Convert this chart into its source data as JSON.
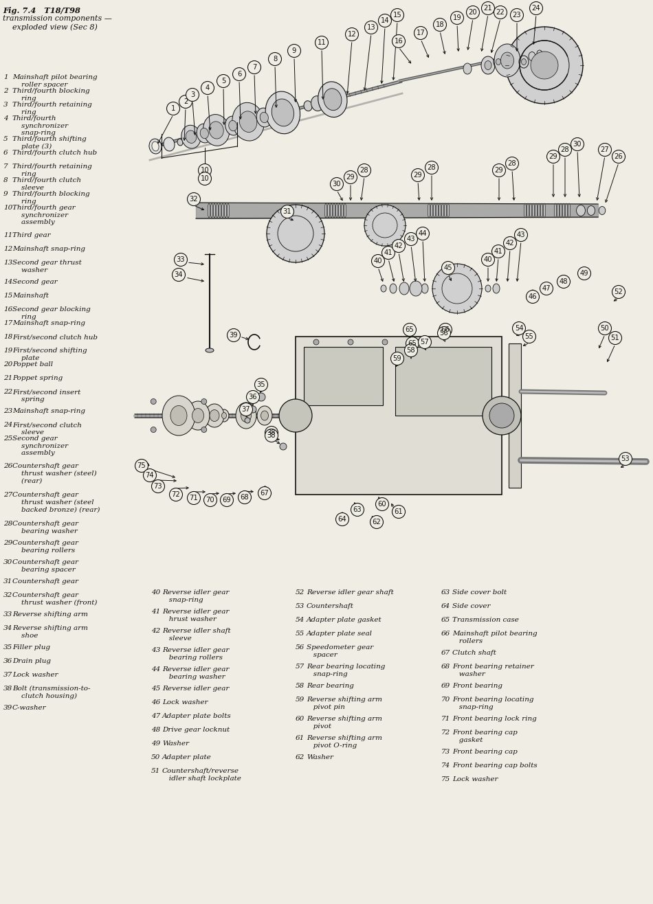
{
  "bg_color": "#f0ede4",
  "text_color": "#111111",
  "title_line1": "Fig. 7.4   T18/T98",
  "title_line2": "transmission components —",
  "title_line3": "    exploded view (Sec 8)",
  "left_col_items": [
    [
      1,
      "Mainshaft pilot bearing\n    roller spacer"
    ],
    [
      2,
      "Third/fourth blocking\n    ring"
    ],
    [
      3,
      "Third/fourth retaining\n    ring"
    ],
    [
      4,
      "Third/fourth\n    synchronizer\n    snap-ring"
    ],
    [
      5,
      "Third/fourth shifting\n    plate (3)"
    ],
    [
      6,
      "Third/fourth clutch hub"
    ],
    [
      7,
      "Third/fourth retaining\n    ring"
    ],
    [
      8,
      "Third/fourth clutch\n    sleeve"
    ],
    [
      9,
      "Third/fourth blocking\n    ring"
    ],
    [
      10,
      "Third/fourth gear\n    synchronizer\n    assembly"
    ],
    [
      11,
      "Third gear"
    ],
    [
      12,
      "Mainshaft snap-ring"
    ],
    [
      13,
      "Second gear thrust\n    washer"
    ],
    [
      14,
      "Second gear"
    ],
    [
      15,
      "Mainshaft"
    ],
    [
      16,
      "Second gear blocking\n    ring"
    ],
    [
      17,
      "Mainshaft snap-ring"
    ],
    [
      18,
      "First/second clutch hub"
    ],
    [
      19,
      "First/second shifting\n    plate"
    ],
    [
      20,
      "Poppet ball"
    ],
    [
      21,
      "Poppet spring"
    ],
    [
      22,
      "First/second insert\n    spring"
    ],
    [
      23,
      "Mainshaft snap-ring"
    ],
    [
      24,
      "First/second clutch\n    sleeve"
    ],
    [
      25,
      "Second gear\n    synchronizer\n    assembly"
    ],
    [
      26,
      "Countershaft gear\n    thrust washer (steel)\n    (rear)"
    ],
    [
      27,
      "Countershaft gear\n    thrust washer (steel\n    backed bronze) (rear)"
    ],
    [
      28,
      "Countershaft gear\n    bearing washer"
    ],
    [
      29,
      "Countershaft gear\n    bearing rollers"
    ],
    [
      30,
      "Countershaft gear\n    bearing spacer"
    ],
    [
      31,
      "Countershaft gear"
    ],
    [
      32,
      "Countershaft gear\n    thrust washer (front)"
    ],
    [
      33,
      "Reverse shifting arm"
    ],
    [
      34,
      "Reverse shifting arm\n    shoe"
    ],
    [
      35,
      "Filler plug"
    ],
    [
      36,
      "Drain plug"
    ],
    [
      37,
      "Lock washer"
    ],
    [
      38,
      "Bolt (transmission-to-\n    clutch housing)"
    ],
    [
      39,
      "C-washer"
    ]
  ],
  "bot_col1": [
    [
      40,
      "Reverse idler gear\n   snap-ring"
    ],
    [
      41,
      "Reverse idler gear\n   hrust washer"
    ],
    [
      42,
      "Reverse idler shaft\n   sleeve"
    ],
    [
      43,
      "Reverse idler gear\n   bearing rollers"
    ],
    [
      44,
      "Reverse idler gear\n   bearing washer"
    ],
    [
      45,
      "Reverse idler gear"
    ],
    [
      46,
      "Lock washer"
    ],
    [
      47,
      "Adapter plate bolts"
    ],
    [
      48,
      "Drive gear locknut"
    ],
    [
      49,
      "Washer"
    ],
    [
      50,
      "Adapter plate"
    ],
    [
      51,
      "Countershaft/reverse\n   idler shaft lockplate"
    ]
  ],
  "bot_col2": [
    [
      52,
      "Reverse idler gear shaft"
    ],
    [
      53,
      "Countershaft"
    ],
    [
      54,
      "Adapter plate gasket"
    ],
    [
      55,
      "Adapter plate seal"
    ],
    [
      56,
      "Speedometer gear\n   spacer"
    ],
    [
      57,
      "Rear bearing locating\n   snap-ring"
    ],
    [
      58,
      "Rear bearing"
    ],
    [
      59,
      "Reverse shifting arm\n   pivot pin"
    ],
    [
      60,
      "Reverse shifting arm\n   pivot"
    ],
    [
      61,
      "Reverse shifting arm\n   pivot O-ring"
    ],
    [
      62,
      "Washer"
    ]
  ],
  "bot_col3": [
    [
      63,
      "Side cover bolt"
    ],
    [
      64,
      "Side cover"
    ],
    [
      65,
      "Transmission case"
    ],
    [
      66,
      "Mainshaft pilot bearing\n   rollers"
    ],
    [
      67,
      "Clutch shaft"
    ],
    [
      68,
      "Front bearing retainer\n   washer"
    ],
    [
      69,
      "Front bearing"
    ],
    [
      70,
      "Front bearing locating\n   snap-ring"
    ],
    [
      71,
      "Front bearing lock ring"
    ],
    [
      72,
      "Front bearing cap\n   gasket"
    ],
    [
      73,
      "Front bearing cap"
    ],
    [
      74,
      "Front bearing cap bolts"
    ],
    [
      75,
      "Lock washer"
    ]
  ]
}
